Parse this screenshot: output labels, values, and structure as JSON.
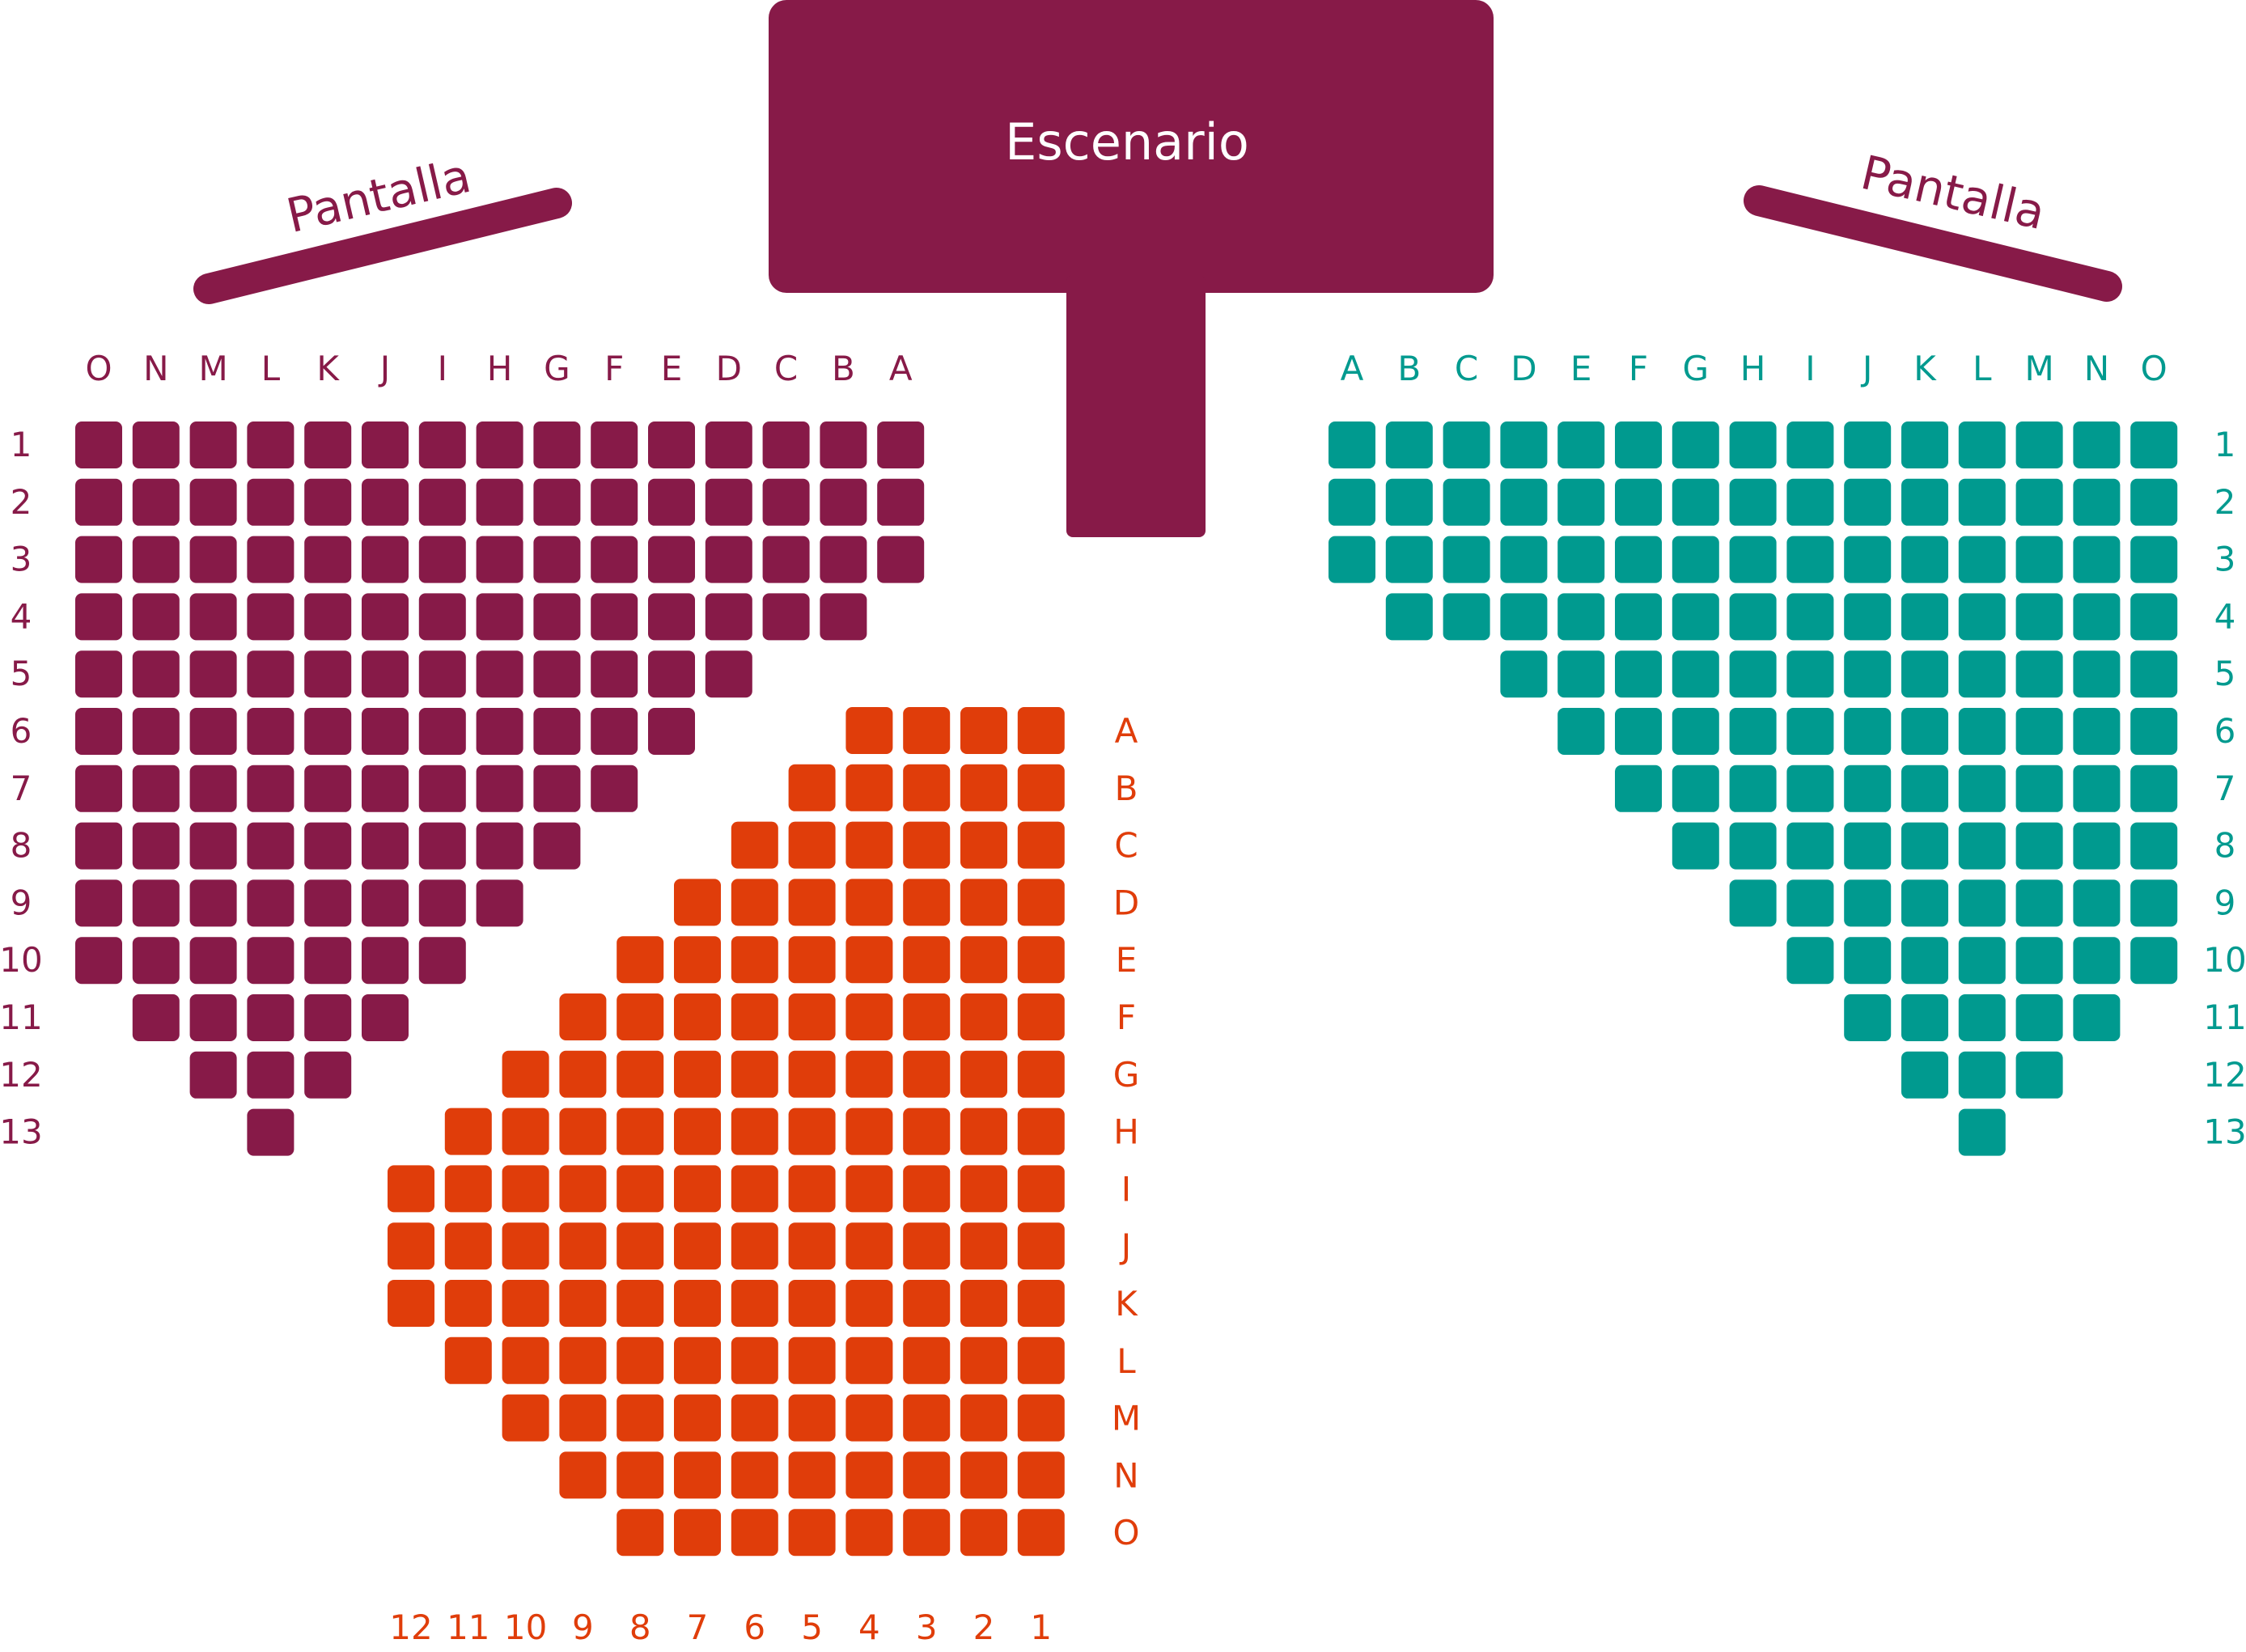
{
  "stage": {
    "label": "Escenario",
    "color": "#871A48"
  },
  "screens": [
    {
      "label": "Pantalla",
      "side": "left",
      "color": "#871A48"
    },
    {
      "label": "Pantalla",
      "side": "right",
      "color": "#871A48"
    }
  ],
  "sections": {
    "left": {
      "color": "#871A48",
      "columns": [
        "O",
        "N",
        "M",
        "L",
        "K",
        "J",
        "I",
        "H",
        "G",
        "F",
        "E",
        "D",
        "C",
        "B",
        "A"
      ],
      "rows": [
        {
          "label": "1",
          "seats": 15
        },
        {
          "label": "2",
          "seats": 15
        },
        {
          "label": "3",
          "seats": 15
        },
        {
          "label": "4",
          "seats": 14
        },
        {
          "label": "5",
          "seats": 12
        },
        {
          "label": "6",
          "seats": 11
        },
        {
          "label": "7",
          "seats": 10
        },
        {
          "label": "8",
          "seats": 9
        },
        {
          "label": "9",
          "seats": 8
        },
        {
          "label": "10",
          "seats": 7
        },
        {
          "label": "11",
          "seats": 5,
          "skip": 1
        },
        {
          "label": "12",
          "seats": 3,
          "skip": 2
        },
        {
          "label": "13",
          "seats": 1,
          "skip": 3
        }
      ]
    },
    "right": {
      "color": "#009A8F",
      "columns": [
        "A",
        "B",
        "C",
        "D",
        "E",
        "F",
        "G",
        "H",
        "I",
        "J",
        "K",
        "L",
        "M",
        "N",
        "O"
      ],
      "rows": [
        {
          "label": "1",
          "seats": 15
        },
        {
          "label": "2",
          "seats": 15
        },
        {
          "label": "3",
          "seats": 15
        },
        {
          "label": "4",
          "seats": 14
        },
        {
          "label": "5",
          "seats": 12
        },
        {
          "label": "6",
          "seats": 11
        },
        {
          "label": "7",
          "seats": 10
        },
        {
          "label": "8",
          "seats": 9
        },
        {
          "label": "9",
          "seats": 8
        },
        {
          "label": "10",
          "seats": 7
        },
        {
          "label": "11",
          "seats": 5,
          "skip": 1
        },
        {
          "label": "12",
          "seats": 3,
          "skip": 2
        },
        {
          "label": "13",
          "seats": 1,
          "skip": 3
        }
      ]
    },
    "center": {
      "color": "#E03D0A",
      "columns": [
        "12",
        "11",
        "10",
        "9",
        "8",
        "7",
        "6",
        "5",
        "4",
        "3",
        "2",
        "1"
      ],
      "rows": [
        {
          "label": "A",
          "seats": 4
        },
        {
          "label": "B",
          "seats": 5
        },
        {
          "label": "C",
          "seats": 6
        },
        {
          "label": "D",
          "seats": 7
        },
        {
          "label": "E",
          "seats": 8
        },
        {
          "label": "F",
          "seats": 9
        },
        {
          "label": "G",
          "seats": 10
        },
        {
          "label": "H",
          "seats": 11
        },
        {
          "label": "I",
          "seats": 12
        },
        {
          "label": "J",
          "seats": 12
        },
        {
          "label": "K",
          "seats": 12
        },
        {
          "label": "L",
          "seats": 11
        },
        {
          "label": "M",
          "seats": 10
        },
        {
          "label": "N",
          "seats": 9
        },
        {
          "label": "O",
          "seats": 8
        }
      ]
    }
  }
}
